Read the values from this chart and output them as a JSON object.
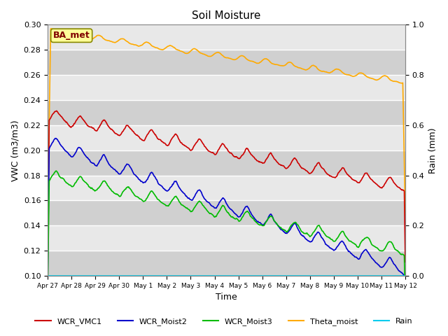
{
  "title": "Soil Moisture",
  "xlabel": "Time",
  "ylabel_left": "VWC (m3/m3)",
  "ylabel_right": "Rain (mm)",
  "ylim_left": [
    0.1,
    0.3
  ],
  "ylim_right": [
    0.0,
    1.0
  ],
  "bg_color": "#e8e8e8",
  "bg_color_dark": "#d0d0d0",
  "annotation_text": "BA_met",
  "annotation_box_color": "#ffff99",
  "annotation_text_color": "#800000",
  "line_colors": {
    "WCR_VMC1": "#cc0000",
    "WCR_Moist2": "#0000cc",
    "WCR_Moist3": "#00bb00",
    "Theta_moist": "#ffaa00",
    "Rain": "#00ccee"
  },
  "n_points": 720,
  "tick_labels": [
    "Apr 27",
    "Apr 28",
    "Apr 29",
    "Apr 30",
    "May 1",
    "May 2",
    "May 3",
    "May 4",
    "May 5",
    "May 6",
    "May 7",
    "May 8",
    "May 9",
    "May 10",
    "May 11",
    "May 12"
  ],
  "tick_positions": [
    0,
    1,
    2,
    3,
    4,
    5,
    6,
    7,
    8,
    9,
    10,
    11,
    12,
    13,
    14,
    15
  ]
}
